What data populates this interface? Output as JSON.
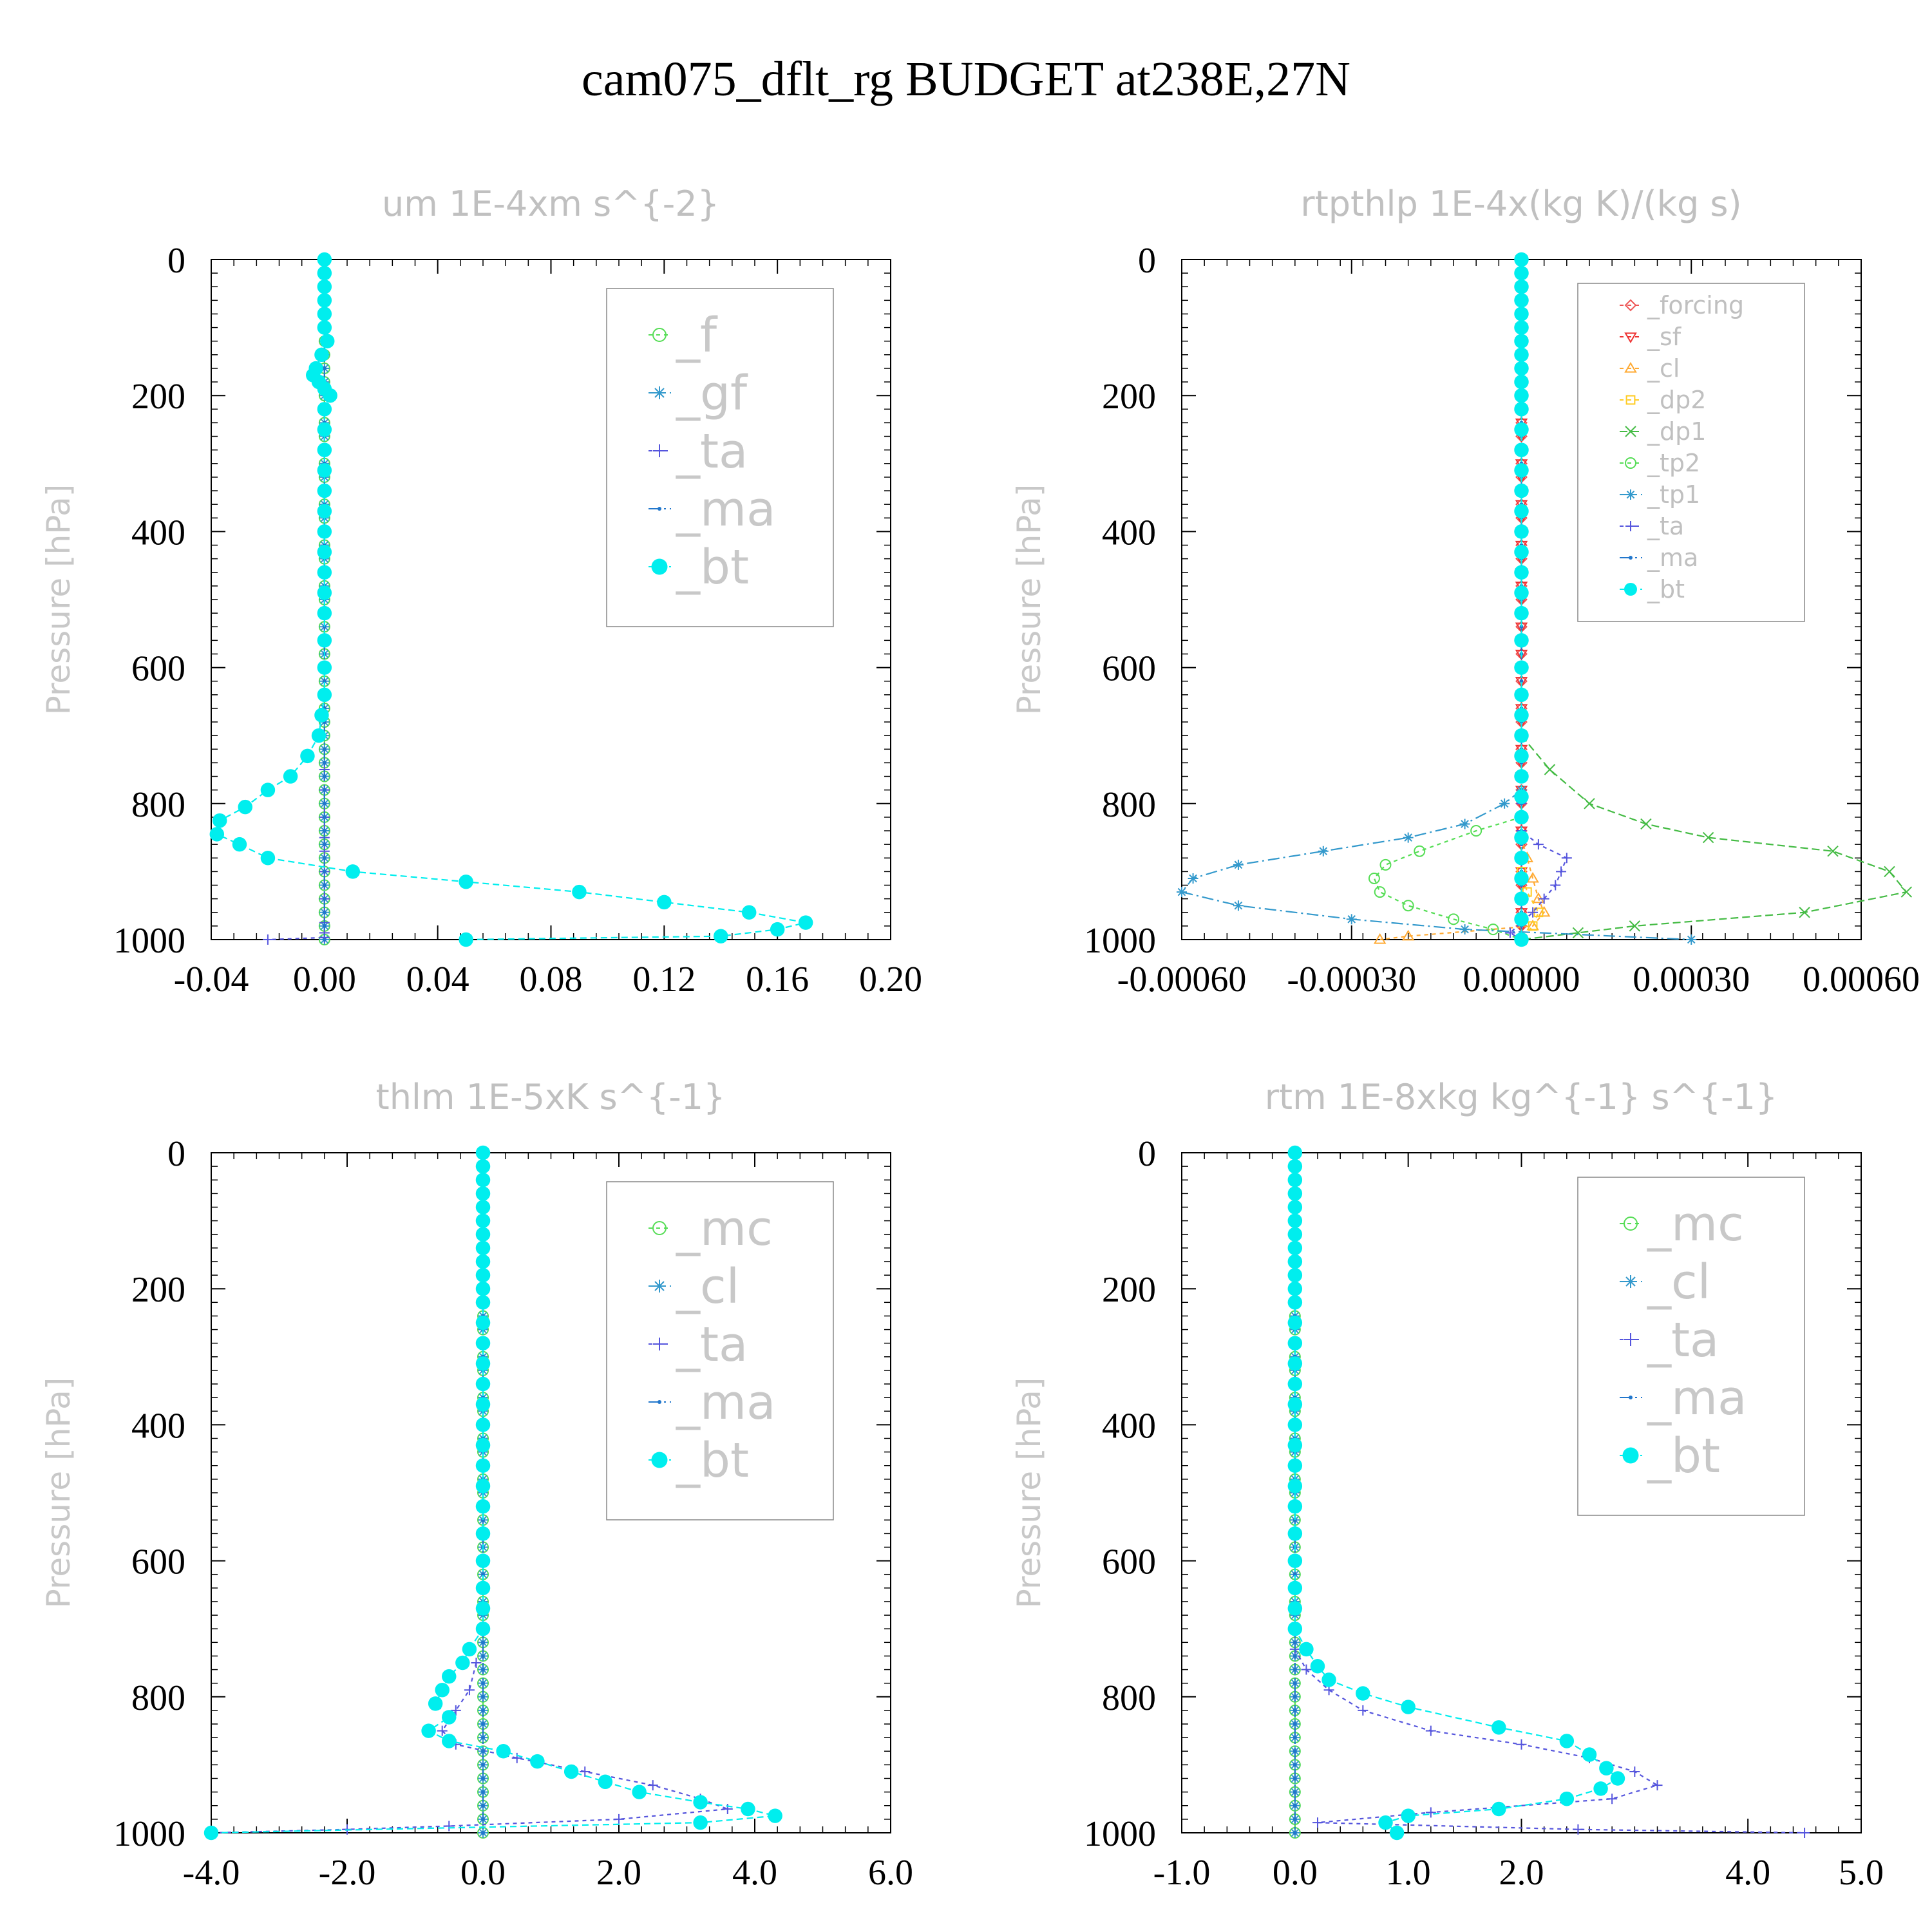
{
  "title": "cam075_dflt_rg  BUDGET at238E,27N",
  "colors": {
    "f": "#55dd55",
    "gf": "#3399cc",
    "ta": "#5555dd",
    "ma": "#2277cc",
    "bt": "#00eeee",
    "forcing": "#ee5555",
    "sf": "#ee3333",
    "cl_orange": "#ffaa33",
    "dp2": "#ffcc22",
    "dp1": "#44bb44",
    "tp2": "#55dd55",
    "tp1": "#3399cc",
    "mc": "#55dd55",
    "cl": "#3399cc"
  },
  "chart_data": [
    {
      "type": "line",
      "title": "um  1E-4xm s^{-2}",
      "ylabel": "Pressure [hPa]",
      "xlim": [
        -0.04,
        0.2
      ],
      "ylim": [
        1000,
        0
      ],
      "x_ticks": [
        "-0.04",
        "0.00",
        "0.04",
        "0.08",
        "0.12",
        "0.16",
        "0.20"
      ],
      "x_tick_values": [
        -0.04,
        0.0,
        0.04,
        0.08,
        0.12,
        0.16,
        0.2
      ],
      "y_ticks": [
        "0",
        "200",
        "400",
        "600",
        "800",
        "1000"
      ],
      "y_tick_values": [
        0,
        200,
        400,
        600,
        800,
        1000
      ],
      "legend_position": "top-right",
      "legend_style": "big",
      "series": [
        {
          "name": "_f",
          "color": "#55dd55",
          "marker": "circle-open",
          "dash": "6,6",
          "const_x": 0.0
        },
        {
          "name": "_gf",
          "color": "#3399cc",
          "marker": "star",
          "dash": "18,6,3,6",
          "const_x": 0.0
        },
        {
          "name": "_ta",
          "color": "#5555dd",
          "marker": "plus",
          "dash": "6,6",
          "p": [
            750,
            780,
            820,
            850,
            870,
            900,
            940,
            975,
            990,
            997,
            1000
          ],
          "x": [
            0.0,
            0.0,
            0.0,
            0.0,
            0.0,
            0.0,
            0.0,
            0.0,
            0.0,
            0.0,
            -0.02
          ]
        },
        {
          "name": "_ma",
          "color": "#2277cc",
          "marker": "dot",
          "dash": "18,6,3,6",
          "const_x": 0.0
        },
        {
          "name": "_bt",
          "color": "#00eeee",
          "marker": "dot-filled",
          "dash": "10,6",
          "p": [
            0,
            20,
            40,
            60,
            80,
            100,
            120,
            140,
            160,
            170,
            180,
            190,
            200,
            220,
            250,
            280,
            310,
            340,
            370,
            400,
            430,
            460,
            490,
            520,
            560,
            600,
            640,
            670,
            700,
            730,
            760,
            780,
            805,
            825,
            845,
            860,
            880,
            900,
            915,
            930,
            945,
            960,
            975,
            985,
            995,
            1000
          ],
          "x": [
            0.0,
            0.0,
            0.0,
            0.0,
            0.0,
            0.0,
            0.001,
            -0.001,
            -0.003,
            -0.004,
            -0.002,
            0.0,
            0.002,
            0.0,
            0.0,
            0.0,
            0.0,
            0.0,
            0.0,
            0.0,
            0.0,
            0.0,
            0.0,
            0.0,
            0.0,
            0.0,
            0.0,
            -0.001,
            -0.002,
            -0.006,
            -0.012,
            -0.02,
            -0.028,
            -0.037,
            -0.038,
            -0.03,
            -0.02,
            0.01,
            0.05,
            0.09,
            0.12,
            0.15,
            0.17,
            0.16,
            0.14,
            0.05
          ]
        }
      ]
    },
    {
      "type": "line",
      "title": "rtpthlp  1E-4x(kg K)/(kg s)",
      "ylabel": "Pressure [hPa]",
      "xlim": [
        -0.0006,
        0.0006
      ],
      "ylim": [
        1000,
        0
      ],
      "x_ticks": [
        "-0.00060",
        "-0.00030",
        "0.00000",
        "0.00030",
        "0.00060"
      ],
      "x_tick_values": [
        -0.0006,
        -0.0003,
        0.0,
        0.0003,
        0.0006
      ],
      "y_ticks": [
        "0",
        "200",
        "400",
        "600",
        "800",
        "1000"
      ],
      "y_tick_values": [
        0,
        200,
        400,
        600,
        800,
        1000
      ],
      "legend_position": "top-right",
      "legend_style": "small",
      "series": [
        {
          "name": "_forcing",
          "color": "#ee5555",
          "marker": "diamond",
          "dash": "6,6",
          "const_x": 0.0
        },
        {
          "name": "_sf",
          "color": "#ee3333",
          "marker": "triangle-down",
          "dash": "6,6",
          "const_x": 0.0
        },
        {
          "name": "_cl",
          "color": "#ffaa33",
          "marker": "triangle-up",
          "dash": "6,6",
          "p": [
            850,
            880,
            910,
            940,
            960,
            980,
            995,
            1000
          ],
          "x": [
            0.0,
            1e-05,
            2e-05,
            3e-05,
            4e-05,
            2e-05,
            -0.0002,
            -0.00025
          ]
        },
        {
          "name": "_dp2",
          "color": "#ffcc22",
          "marker": "square",
          "dash": "6,6",
          "p": [
            900,
            930,
            960,
            980,
            1000
          ],
          "x": [
            0.0,
            1e-05,
            3e-05,
            2e-05,
            0.0
          ]
        },
        {
          "name": "_dp1",
          "color": "#44bb44",
          "marker": "x",
          "dash": "12,6",
          "p": [
            700,
            750,
            800,
            830,
            850,
            870,
            900,
            930,
            960,
            980,
            990,
            1000
          ],
          "x": [
            0.0,
            5e-05,
            0.00012,
            0.00022,
            0.00033,
            0.00055,
            0.00065,
            0.00068,
            0.0005,
            0.0002,
            0.0001,
            0.0
          ]
        },
        {
          "name": "_tp2",
          "color": "#55dd55",
          "marker": "circle-open",
          "dash": "6,6",
          "p": [
            820,
            840,
            870,
            890,
            910,
            930,
            950,
            970,
            985,
            1000
          ],
          "x": [
            0.0,
            -8e-05,
            -0.00018,
            -0.00024,
            -0.00026,
            -0.00025,
            -0.0002,
            -0.00012,
            -5e-05,
            0.0
          ]
        },
        {
          "name": "_tp1",
          "color": "#3399cc",
          "marker": "star",
          "dash": "18,6,3,6",
          "p": [
            780,
            800,
            830,
            850,
            870,
            890,
            910,
            930,
            950,
            970,
            985,
            1000
          ],
          "x": [
            0.0,
            -3e-05,
            -0.0001,
            -0.0002,
            -0.00035,
            -0.0005,
            -0.00058,
            -0.0006,
            -0.0005,
            -0.0003,
            -0.0001,
            0.0003
          ]
        },
        {
          "name": "_ta",
          "color": "#5555dd",
          "marker": "plus",
          "dash": "6,6",
          "p": [
            800,
            840,
            860,
            880,
            900,
            920,
            940,
            960,
            975,
            990,
            1000
          ],
          "x": [
            0.0,
            0.0,
            3e-05,
            8e-05,
            7e-05,
            6e-05,
            4e-05,
            2e-05,
            0.0,
            -2e-05,
            0.0
          ]
        },
        {
          "name": "_ma",
          "color": "#2277cc",
          "marker": "dot",
          "dash": "18,6,3,6",
          "const_x": 0.0
        },
        {
          "name": "_bt",
          "color": "#00eeee",
          "marker": "dot-filled",
          "dash": "10,6",
          "p": [
            0,
            20,
            40,
            60,
            80,
            100,
            120,
            140,
            160,
            180,
            200,
            220,
            250,
            280,
            310,
            340,
            370,
            400,
            430,
            460,
            490,
            520,
            560,
            600,
            640,
            670,
            700,
            730,
            760,
            790,
            820,
            850,
            880,
            910,
            940,
            970,
            1000
          ],
          "x": [
            0.0,
            0.0,
            0.0,
            0.0,
            0.0,
            0.0,
            0.0,
            0.0,
            0.0,
            0.0,
            0.0,
            0.0,
            0.0,
            0.0,
            0.0,
            0.0,
            0.0,
            0.0,
            0.0,
            0.0,
            0.0,
            0.0,
            0.0,
            0.0,
            0.0,
            0.0,
            0.0,
            0.0,
            0.0,
            0.0,
            0.0,
            0.0,
            0.0,
            0.0,
            0.0,
            0.0,
            0.0
          ]
        }
      ]
    },
    {
      "type": "line",
      "title": "thlm  1E-5xK s^{-1}",
      "ylabel": "Pressure [hPa]",
      "xlim": [
        -4.0,
        6.0
      ],
      "ylim": [
        1000,
        0
      ],
      "x_ticks": [
        "-4.0",
        "-2.0",
        "0.0",
        "2.0",
        "4.0",
        "6.0"
      ],
      "x_tick_values": [
        -4.0,
        -2.0,
        0.0,
        2.0,
        4.0,
        6.0
      ],
      "y_ticks": [
        "0",
        "200",
        "400",
        "600",
        "800",
        "1000"
      ],
      "y_tick_values": [
        0,
        200,
        400,
        600,
        800,
        1000
      ],
      "legend_position": "top-right",
      "legend_style": "big",
      "series": [
        {
          "name": "_mc",
          "color": "#55dd55",
          "marker": "circle-open",
          "dash": "6,6",
          "const_x": 0.0
        },
        {
          "name": "_cl",
          "color": "#3399cc",
          "marker": "star",
          "dash": "18,6,3,6",
          "const_x": 0.0
        },
        {
          "name": "_ta",
          "color": "#5555dd",
          "marker": "plus",
          "dash": "6,6",
          "p": [
            750,
            790,
            820,
            850,
            870,
            890,
            910,
            930,
            950,
            965,
            980,
            990,
            995,
            1000
          ],
          "x": [
            -0.1,
            -0.2,
            -0.4,
            -0.6,
            -0.4,
            0.5,
            1.5,
            2.5,
            3.2,
            3.6,
            2.0,
            -0.5,
            -2.0,
            -4.0
          ]
        },
        {
          "name": "_ma",
          "color": "#2277cc",
          "marker": "dot",
          "dash": "18,6,3,6",
          "const_x": 0.0
        },
        {
          "name": "_bt",
          "color": "#00eeee",
          "marker": "dot-filled",
          "dash": "10,6",
          "p": [
            0,
            20,
            40,
            60,
            80,
            100,
            120,
            140,
            160,
            180,
            200,
            220,
            250,
            280,
            310,
            340,
            370,
            400,
            430,
            460,
            490,
            520,
            560,
            600,
            640,
            670,
            700,
            730,
            750,
            770,
            790,
            810,
            830,
            850,
            865,
            880,
            895,
            910,
            925,
            940,
            955,
            965,
            975,
            985,
            1000
          ],
          "x": [
            0.0,
            0.0,
            0.0,
            0.0,
            0.0,
            0.0,
            0.0,
            0.0,
            0.0,
            0.0,
            0.0,
            0.0,
            0.0,
            0.0,
            0.0,
            0.0,
            0.0,
            0.0,
            0.0,
            0.0,
            0.0,
            0.0,
            0.0,
            0.0,
            0.0,
            0.0,
            0.0,
            -0.2,
            -0.3,
            -0.5,
            -0.6,
            -0.7,
            -0.5,
            -0.8,
            -0.5,
            0.3,
            0.8,
            1.3,
            1.8,
            2.3,
            3.2,
            3.9,
            4.3,
            3.2,
            -4.0
          ]
        }
      ]
    },
    {
      "type": "line",
      "title": "rtm  1E-8xkg kg^{-1} s^{-1}",
      "ylabel": "Pressure [hPa]",
      "xlim": [
        -1.0,
        5.0
      ],
      "ylim": [
        1000,
        0
      ],
      "x_ticks": [
        "-1.0",
        "0.0",
        "1.0",
        "2.0",
        "4.0",
        "5.0"
      ],
      "x_tick_values": [
        -1.0,
        0.0,
        1.0,
        2.0,
        4.0,
        5.0
      ],
      "y_ticks": [
        "0",
        "200",
        "400",
        "600",
        "800",
        "1000"
      ],
      "y_tick_values": [
        0,
        200,
        400,
        600,
        800,
        1000
      ],
      "legend_position": "top-right",
      "legend_style": "big",
      "series": [
        {
          "name": "_mc",
          "color": "#55dd55",
          "marker": "circle-open",
          "dash": "6,6",
          "const_x": 0.0
        },
        {
          "name": "_cl",
          "color": "#3399cc",
          "marker": "star",
          "dash": "18,6,3,6",
          "const_x": 0.0
        },
        {
          "name": "_ta",
          "color": "#5555dd",
          "marker": "plus",
          "dash": "6,6",
          "p": [
            730,
            760,
            790,
            820,
            850,
            870,
            890,
            910,
            930,
            950,
            970,
            985,
            995,
            1000
          ],
          "x": [
            0.0,
            0.1,
            0.3,
            0.6,
            1.2,
            2.0,
            2.6,
            3.0,
            3.2,
            2.8,
            1.2,
            0.2,
            2.5,
            4.5
          ]
        },
        {
          "name": "_ma",
          "color": "#2277cc",
          "marker": "dot",
          "dash": "18,6,3,6",
          "const_x": 0.0
        },
        {
          "name": "_bt",
          "color": "#00eeee",
          "marker": "dot-filled",
          "dash": "10,6",
          "p": [
            0,
            20,
            40,
            60,
            80,
            100,
            120,
            140,
            160,
            180,
            200,
            220,
            250,
            280,
            310,
            340,
            370,
            400,
            430,
            460,
            490,
            520,
            560,
            600,
            640,
            670,
            700,
            730,
            755,
            775,
            795,
            815,
            845,
            865,
            885,
            905,
            920,
            935,
            950,
            965,
            975,
            985,
            1000
          ],
          "x": [
            0.0,
            0.0,
            0.0,
            0.0,
            0.0,
            0.0,
            0.0,
            0.0,
            0.0,
            0.0,
            0.0,
            0.0,
            0.0,
            0.0,
            0.0,
            0.0,
            0.0,
            0.0,
            0.0,
            0.0,
            0.0,
            0.0,
            0.0,
            0.0,
            0.0,
            0.0,
            0.0,
            0.1,
            0.2,
            0.3,
            0.6,
            1.0,
            1.8,
            2.4,
            2.6,
            2.75,
            2.85,
            2.7,
            2.4,
            1.8,
            1.0,
            0.8,
            0.9
          ]
        }
      ]
    }
  ]
}
